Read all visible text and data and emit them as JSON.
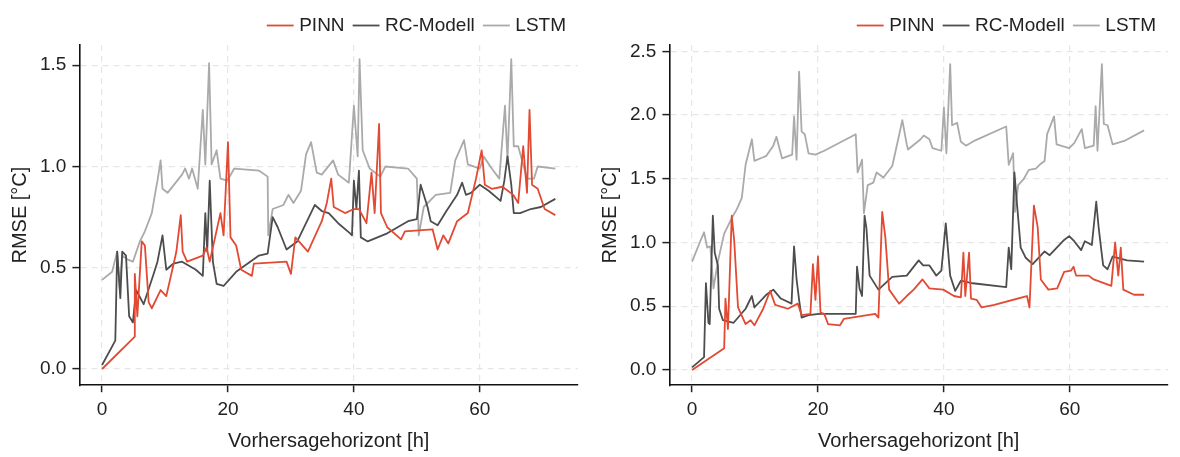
{
  "chart_data": [
    {
      "type": "line",
      "xlabel": "Vorhersagehorizont [h]",
      "ylabel": "RMSE [°C]",
      "legend": "top",
      "grid": true,
      "xlim": [
        -3.6,
        75.6
      ],
      "ylim": [
        -0.08,
        1.6
      ],
      "xticks": [
        0,
        20,
        40,
        60
      ],
      "yticks": [
        {
          "value": 0,
          "label": "0.0"
        },
        {
          "value": 0.5,
          "label": "0.5"
        },
        {
          "value": 1,
          "label": "1.0"
        },
        {
          "value": 1.5,
          "label": "1.5"
        }
      ],
      "series": [
        {
          "name": "PINN",
          "color": "#e24a33",
          "x": [
            0,
            5.2,
            5.2,
            5.6,
            6.3,
            6.8,
            7.4,
            7.9,
            9.3,
            10.2,
            11.3,
            11.8,
            12.5,
            12.8,
            13.5,
            16,
            16.6,
            17.1,
            18.8,
            19.3,
            20,
            20.4,
            21.3,
            22.1,
            23.8,
            24.1,
            29.3,
            30,
            30.7,
            32.7,
            34.9,
            35.7,
            36.4,
            36.8,
            38.6,
            40,
            40.8,
            42,
            42.8,
            43.3,
            44,
            44.3,
            45.3,
            47.5,
            48.1,
            52.5,
            53.3,
            54.2,
            55,
            56.4,
            58.1,
            59.4,
            60.3,
            60.8,
            61.9,
            63.6,
            65.3,
            66.1,
            66.9,
            67.5,
            67.9,
            68.3,
            69.2,
            70.3,
            72
          ],
          "values": [
            0,
            0.16,
            0.47,
            0.26,
            0.63,
            0.61,
            0.33,
            0.3,
            0.39,
            0.36,
            0.51,
            0.58,
            0.76,
            0.58,
            0.53,
            0.56,
            0.6,
            0.53,
            0.77,
            0.66,
            1.12,
            0.65,
            0.61,
            0.49,
            0.46,
            0.52,
            0.53,
            0.47,
            0.65,
            0.58,
            0.73,
            0.82,
            0.94,
            0.8,
            0.77,
            0.79,
            0.79,
            0.72,
            0.97,
            0.77,
            1.21,
            0.77,
            0.7,
            0.64,
            0.68,
            0.69,
            0.59,
            0.66,
            0.62,
            0.73,
            0.77,
            0.94,
            1.08,
            0.91,
            0.89,
            0.9,
            0.86,
            0.82,
            1.1,
            0.87,
            1.28,
            0.91,
            0.89,
            0.79,
            0.76
          ]
        },
        {
          "name": "RC-Modell",
          "color": "#4d4d4d",
          "x": [
            0,
            2.1,
            2.4,
            2.9,
            3.2,
            3.8,
            4.3,
            4.9,
            5.4,
            6.6,
            8.2,
            8.8,
            9.6,
            10.2,
            11.3,
            12.7,
            14.9,
            16,
            16.4,
            16.7,
            17.1,
            17.6,
            18.2,
            19.3,
            21.3,
            24.9,
            26.3,
            27.1,
            27.9,
            29.3,
            31,
            32.4,
            33.8,
            34.9,
            36,
            37.5,
            39.4,
            39.7,
            40,
            40.4,
            40.8,
            41.1,
            42.2,
            45.3,
            48.6,
            50,
            50.6,
            51.1,
            51.7,
            52.2,
            53.3,
            54.7,
            56.4,
            57.2,
            57.8,
            58.6,
            60,
            61.4,
            63.3,
            63.9,
            64.4,
            65,
            65.4,
            66.4,
            68.1,
            69.7,
            72
          ],
          "values": [
            0.02,
            0.14,
            0.58,
            0.35,
            0.58,
            0.56,
            0.26,
            0.23,
            0.39,
            0.32,
            0.47,
            0.53,
            0.66,
            0.49,
            0.52,
            0.53,
            0.49,
            0.46,
            0.77,
            0.58,
            0.93,
            0.53,
            0.42,
            0.41,
            0.48,
            0.56,
            0.57,
            0.75,
            0.7,
            0.59,
            0.63,
            0.72,
            0.81,
            0.78,
            0.77,
            0.72,
            0.67,
            0.66,
            0.93,
            0.79,
            0.98,
            0.65,
            0.63,
            0.67,
            0.73,
            0.74,
            0.91,
            0.86,
            0.8,
            0.73,
            0.71,
            0.78,
            0.86,
            0.92,
            0.86,
            0.87,
            0.91,
            0.88,
            0.83,
            0.93,
            1.05,
            0.91,
            0.77,
            0.77,
            0.79,
            0.8,
            0.84
          ]
        },
        {
          "name": "LSTM",
          "color": "#aaaaaa",
          "x": [
            0,
            1.6,
            2.4,
            2.8,
            3.2,
            4.1,
            4.9,
            6,
            6.8,
            7.9,
            8.5,
            8.8,
            9.3,
            9.6,
            10.4,
            12.7,
            13.2,
            13.8,
            14.3,
            15.2,
            16,
            16.4,
            17,
            17.4,
            18.2,
            18.8,
            19.9,
            21,
            24.9,
            26.3,
            26.4,
            27.1,
            28.8,
            29.6,
            30.4,
            31.6,
            32.4,
            33.2,
            34.1,
            34.9,
            36.7,
            37.5,
            39.2,
            40,
            40.6,
            40.9,
            41.4,
            42.5,
            44.2,
            45,
            48.6,
            50,
            50.3,
            51.1,
            53,
            55.3,
            56.1,
            57.5,
            58.1,
            60,
            60.6,
            61.9,
            63.1,
            64,
            64.4,
            65,
            65.4,
            66.1,
            67.5,
            68.6,
            69.2,
            72
          ],
          "values": [
            0.44,
            0.48,
            0.58,
            0.4,
            0.56,
            0.54,
            0.53,
            0.63,
            0.68,
            0.77,
            0.88,
            0.93,
            1.03,
            0.89,
            0.87,
            0.96,
            0.99,
            0.94,
            0.99,
            0.89,
            1.28,
            1.01,
            1.51,
            1.01,
            1.08,
            0.94,
            0.93,
            0.99,
            0.98,
            0.95,
            0.66,
            0.79,
            0.81,
            0.86,
            0.82,
            0.88,
            1.06,
            1.12,
            0.97,
            0.96,
            1.03,
            0.96,
            0.92,
            1.3,
            1.05,
            1.53,
            1.08,
            0.99,
            0.95,
            1,
            0.99,
            0.94,
            0.66,
            0.8,
            0.86,
            0.87,
            1.03,
            1.13,
            1.01,
            0.99,
            1.05,
            0.99,
            0.94,
            1.3,
            1.03,
            1.53,
            1.1,
            1.1,
            0.94,
            0.94,
            1,
            0.99
          ]
        }
      ]
    },
    {
      "type": "line",
      "xlabel": "Vorhersagehorizont [h]",
      "ylabel": "RMSE [°C]",
      "legend": "top",
      "grid": true,
      "xlim": [
        -3.6,
        75.6
      ],
      "ylim": [
        -0.12,
        2.55
      ],
      "xticks": [
        0,
        20,
        40,
        60
      ],
      "yticks": [
        {
          "value": 0,
          "label": "0.0"
        },
        {
          "value": 0.5,
          "label": "0.5"
        },
        {
          "value": 1,
          "label": "1.0"
        },
        {
          "value": 1.5,
          "label": "1.5"
        },
        {
          "value": 2,
          "label": "2.0"
        },
        {
          "value": 2.5,
          "label": "2.5"
        }
      ],
      "series": [
        {
          "name": "PINN",
          "color": "#e24a33",
          "x": [
            0,
            5.1,
            5.3,
            5.7,
            6.3,
            6.7,
            7.3,
            8.5,
            9.3,
            9.9,
            11.3,
            12.4,
            13.2,
            15.2,
            16.8,
            17.4,
            18.8,
            19.2,
            19.6,
            20,
            20.4,
            21,
            21.6,
            23.5,
            24.1,
            29.1,
            29.6,
            30.2,
            30.7,
            31.3,
            32.9,
            34.1,
            35.2,
            36.6,
            37.7,
            39.9,
            41.6,
            42.7,
            43.1,
            43.4,
            44,
            44.3,
            45.2,
            46,
            48,
            53.2,
            53.6,
            54.3,
            54.9,
            55.4,
            56.6,
            58,
            59.1,
            60.2,
            60.6,
            61,
            63,
            63.8,
            66.6,
            67.2,
            67.7,
            68.1,
            68.5,
            70.2,
            71.8
          ],
          "values": [
            0,
            0.17,
            0.56,
            0.32,
            1.21,
            1.01,
            0.49,
            0.36,
            0.39,
            0.35,
            0.48,
            0.62,
            0.51,
            0.48,
            0.52,
            0.43,
            0.44,
            0.83,
            0.55,
            0.89,
            0.45,
            0.44,
            0.36,
            0.35,
            0.4,
            0.44,
            0.41,
            1.24,
            1.04,
            0.63,
            0.52,
            0.58,
            0.63,
            0.71,
            0.64,
            0.63,
            0.58,
            0.57,
            0.92,
            0.58,
            0.92,
            0.56,
            0.55,
            0.49,
            0.51,
            0.58,
            0.49,
            1.29,
            1.12,
            0.71,
            0.63,
            0.64,
            0.77,
            0.78,
            0.81,
            0.74,
            0.74,
            0.71,
            0.66,
            1,
            0.74,
            0.96,
            0.63,
            0.59,
            0.59
          ]
        },
        {
          "name": "RC-Modell",
          "color": "#4d4d4d",
          "x": [
            0,
            1.9,
            2.2,
            2.6,
            2.8,
            3.3,
            3.6,
            4.1,
            4.3,
            4.9,
            6.6,
            8.5,
            9.5,
            9.9,
            11.8,
            12.9,
            14.1,
            15.8,
            16.2,
            16.6,
            17,
            17.4,
            18.5,
            20.2,
            26,
            26.2,
            26.6,
            27,
            27.4,
            27.7,
            28.2,
            29.6,
            31.8,
            34.1,
            36,
            36.7,
            37.7,
            38.8,
            39.6,
            40.3,
            41,
            41.8,
            42.7,
            44.6,
            49.9,
            50.3,
            50.7,
            51.2,
            51.6,
            52.2,
            53,
            54.1,
            56,
            56.8,
            59.1,
            59.9,
            60.7,
            61.8,
            62.4,
            63.5,
            64.2,
            64.6,
            65.3,
            66,
            66.8,
            69.1,
            71.8
          ],
          "values": [
            0.02,
            0.1,
            0.68,
            0.37,
            0.36,
            1.21,
            0.92,
            0.82,
            0.48,
            0.39,
            0.37,
            0.48,
            0.58,
            0.49,
            0.59,
            0.63,
            0.56,
            0.52,
            0.97,
            0.71,
            0.55,
            0.41,
            0.43,
            0.44,
            0.44,
            0.81,
            0.64,
            0.58,
            1.21,
            1.11,
            0.74,
            0.63,
            0.73,
            0.74,
            0.86,
            0.82,
            0.82,
            0.74,
            0.78,
            1.15,
            0.74,
            0.62,
            0.7,
            0.68,
            0.65,
            0.96,
            0.79,
            1.55,
            1.31,
            0.96,
            0.88,
            0.83,
            0.93,
            0.9,
            1.02,
            1.05,
            1.01,
            0.94,
            1.01,
            0.98,
            1.32,
            1.11,
            0.82,
            0.79,
            0.89,
            0.86,
            0.85
          ]
        },
        {
          "name": "LSTM",
          "color": "#aaaaaa",
          "x": [
            0,
            1.3,
            1.9,
            2.4,
            2.9,
            3.4,
            4.1,
            5.1,
            5.9,
            6.5,
            7.1,
            7.9,
            8.5,
            9.5,
            9.9,
            11.8,
            12.9,
            13.4,
            14.3,
            15.9,
            16.2,
            16.6,
            17,
            17.4,
            17.9,
            18.5,
            19.6,
            21,
            26,
            26.3,
            27,
            27.3,
            27.9,
            28.8,
            29.3,
            30.4,
            31.8,
            32.7,
            33.4,
            34.1,
            34.3,
            36.3,
            36.8,
            37.7,
            38.2,
            39.6,
            40,
            40.4,
            41,
            41.3,
            42.1,
            42.7,
            43.5,
            44.9,
            49.9,
            50.3,
            51,
            51.3,
            51.8,
            52.7,
            53.5,
            54.6,
            55.2,
            56,
            56.4,
            57.5,
            57.9,
            59.9,
            60.7,
            61.9,
            62.4,
            63.8,
            64.1,
            64.4,
            65.1,
            65.4,
            66,
            66.8,
            68.8,
            71.8
          ],
          "values": [
            0.85,
            1.01,
            1.08,
            0.96,
            0.97,
            0.64,
            0.85,
            1.07,
            1.15,
            1.21,
            1.26,
            1.35,
            1.61,
            1.81,
            1.64,
            1.68,
            1.76,
            1.83,
            1.66,
            1.69,
            1.99,
            1.65,
            2.34,
            1.87,
            1.85,
            1.7,
            1.69,
            1.72,
            1.85,
            1.55,
            1.65,
            1.23,
            1.45,
            1.47,
            1.55,
            1.51,
            1.6,
            1.8,
            1.96,
            1.77,
            1.73,
            1.81,
            1.84,
            1.81,
            1.74,
            1.72,
            2.06,
            1.7,
            2.4,
            1.92,
            1.94,
            1.79,
            1.76,
            1.8,
            1.91,
            1.61,
            1.7,
            1.24,
            1.45,
            1.5,
            1.57,
            1.58,
            1.61,
            1.64,
            1.85,
            1.99,
            1.77,
            1.74,
            1.78,
            1.89,
            1.74,
            1.76,
            2.07,
            1.72,
            2.4,
            1.93,
            1.92,
            1.77,
            1.8,
            1.88
          ]
        }
      ]
    }
  ]
}
